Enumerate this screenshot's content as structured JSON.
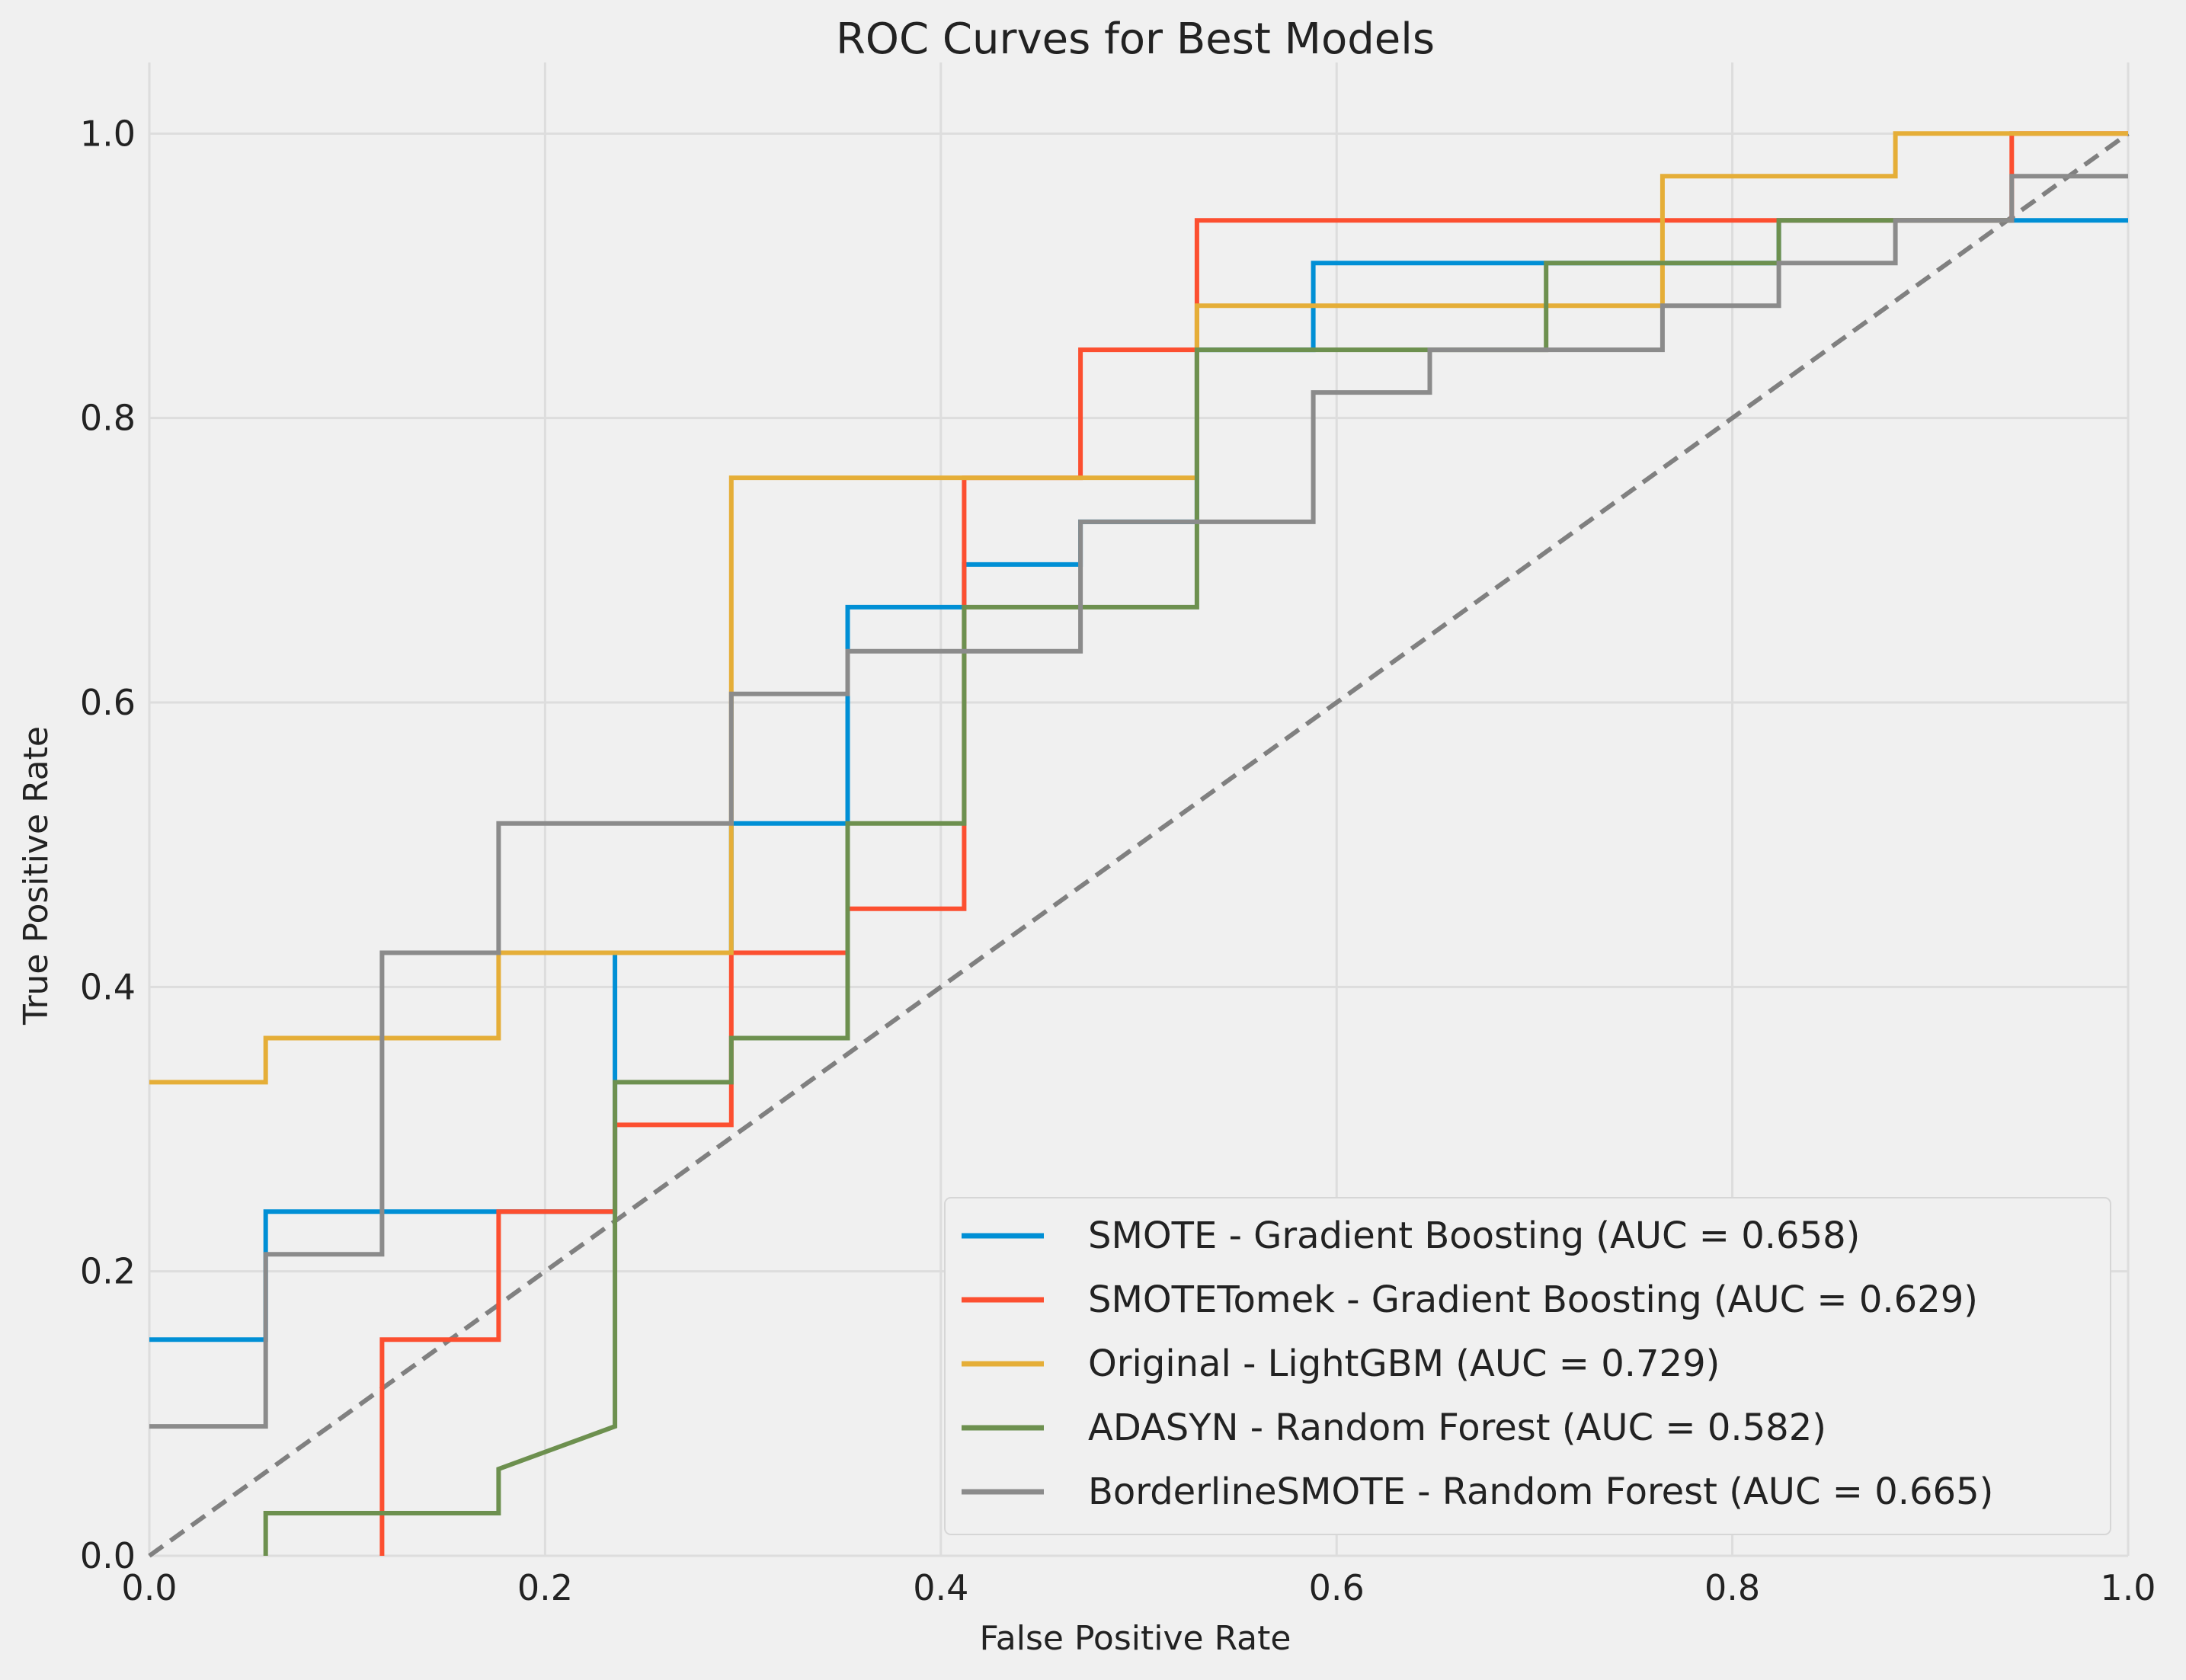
{
  "chart_data": {
    "type": "line",
    "title": "ROC Curves for Best Models",
    "xlabel": "False Positive Rate",
    "ylabel": "True Positive Rate",
    "xlim": [
      0.0,
      1.0
    ],
    "ylim": [
      0.0,
      1.05
    ],
    "xticks": [
      "0.0",
      "0.2",
      "0.4",
      "0.6",
      "0.8",
      "1.0"
    ],
    "yticks": [
      "0.0",
      "0.2",
      "0.4",
      "0.6",
      "0.8",
      "1.0"
    ],
    "grid": true,
    "legend_position": "bottom-right",
    "series": [
      {
        "name": "SMOTE - Gradient Boosting (AUC = 0.658)",
        "color": "#008fd5",
        "x": [
          0,
          0.0588,
          0.0588,
          0.2353,
          0.2353,
          0.2941,
          0.2941,
          0.3529,
          0.3529,
          0.4118,
          0.4118,
          0.4706,
          0.4706,
          0.5294,
          0.5294,
          0.5882,
          0.5882,
          0.7059,
          0.7059,
          0.7647,
          0.7647,
          0.8235,
          0.8235,
          0.9412,
          0.9412,
          1.0
        ],
        "y": [
          0.152,
          0.152,
          0.242,
          0.242,
          0.424,
          0.424,
          0.515,
          0.515,
          0.667,
          0.667,
          0.697,
          0.697,
          0.727,
          0.727,
          0.848,
          0.848,
          0.909,
          0.909,
          0.909,
          0.909,
          0.909,
          0.909,
          0.939,
          0.939,
          0.939,
          0.939
        ]
      },
      {
        "name": "SMOTETomek - Gradient Boosting (AUC = 0.629)",
        "color": "#fc4f30",
        "x": [
          0.1176,
          0.1176,
          0.1765,
          0.1765,
          0.2353,
          0.2353,
          0.2941,
          0.2941,
          0.3529,
          0.3529,
          0.4118,
          0.4118,
          0.4706,
          0.4706,
          0.5294,
          0.5294,
          0.9412,
          0.9412,
          1.0
        ],
        "y": [
          0.0,
          0.152,
          0.152,
          0.242,
          0.242,
          0.303,
          0.303,
          0.424,
          0.424,
          0.455,
          0.455,
          0.758,
          0.758,
          0.848,
          0.848,
          0.939,
          0.939,
          1.0,
          1.0
        ]
      },
      {
        "name": "Original - LightGBM (AUC = 0.729)",
        "color": "#e5ae38",
        "x": [
          0,
          0.0588,
          0.0588,
          0.1765,
          0.1765,
          0.2941,
          0.2941,
          0.5294,
          0.5294,
          0.7647,
          0.7647,
          0.8824,
          0.8824,
          1.0
        ],
        "y": [
          0.333,
          0.333,
          0.364,
          0.364,
          0.424,
          0.424,
          0.758,
          0.758,
          0.879,
          0.879,
          0.97,
          0.97,
          1.0,
          1.0
        ]
      },
      {
        "name": "ADASYN - Random Forest (AUC = 0.582)",
        "color": "#6d904f",
        "x": [
          0.0588,
          0.0588,
          0.1765,
          0.1765,
          0.2353,
          0.2353,
          0.2941,
          0.2941,
          0.3529,
          0.3529,
          0.4118,
          0.4118,
          0.5294,
          0.5294,
          0.7059,
          0.7059,
          0.8235,
          0.8235,
          0.9412
        ],
        "y": [
          0.0,
          0.03,
          0.03,
          0.061,
          0.091,
          0.333,
          0.333,
          0.364,
          0.364,
          0.515,
          0.515,
          0.667,
          0.667,
          0.848,
          0.848,
          0.909,
          0.909,
          0.939,
          0.939
        ]
      },
      {
        "name": "BorderlineSMOTE - Random Forest (AUC = 0.665)",
        "color": "#8b8b8b",
        "x": [
          0,
          0.0588,
          0.0588,
          0.1176,
          0.1176,
          0.1765,
          0.1765,
          0.2941,
          0.2941,
          0.3529,
          0.3529,
          0.4706,
          0.4706,
          0.5882,
          0.5882,
          0.6471,
          0.6471,
          0.7647,
          0.7647,
          0.8235,
          0.8235,
          0.8824,
          0.8824,
          0.9412,
          0.9412,
          1.0
        ],
        "y": [
          0.091,
          0.091,
          0.212,
          0.212,
          0.424,
          0.424,
          0.515,
          0.515,
          0.606,
          0.606,
          0.636,
          0.636,
          0.727,
          0.727,
          0.818,
          0.818,
          0.848,
          0.848,
          0.879,
          0.879,
          0.909,
          0.909,
          0.939,
          0.939,
          0.97,
          0.97
        ]
      }
    ],
    "reference_line": {
      "x": [
        0,
        1
      ],
      "y": [
        0,
        1
      ],
      "color": "#808080",
      "style": "dashed"
    }
  }
}
